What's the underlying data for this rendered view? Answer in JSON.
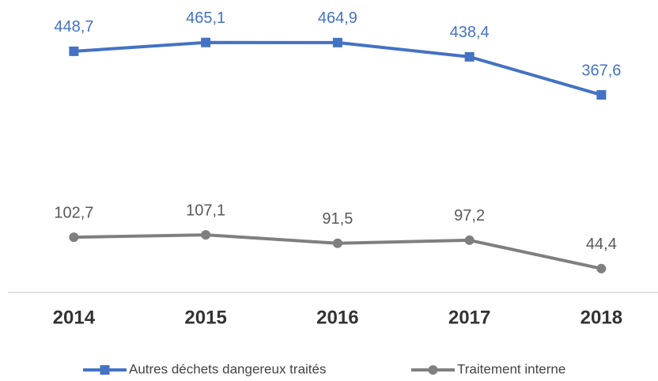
{
  "chart_data": {
    "type": "line",
    "categories": [
      "2014",
      "2015",
      "2016",
      "2017",
      "2018"
    ],
    "series": [
      {
        "name": "Autres déchets dangereux traités",
        "color": "#4472c4",
        "marker": "square",
        "values": [
          448.7,
          465.1,
          464.9,
          438.4,
          367.6
        ],
        "value_labels": [
          "448,7",
          "465,1",
          "464,9",
          "438,4",
          "367,6"
        ]
      },
      {
        "name": "Traitement interne",
        "color": "#7f7f7f",
        "marker": "circle",
        "values": [
          102.7,
          107.1,
          91.5,
          97.2,
          44.4
        ],
        "value_labels": [
          "102,7",
          "107,1",
          "91,5",
          "97,2",
          "44,4"
        ]
      }
    ],
    "ylim": [
      0,
      500
    ],
    "grid": false,
    "legend": "bottom"
  }
}
